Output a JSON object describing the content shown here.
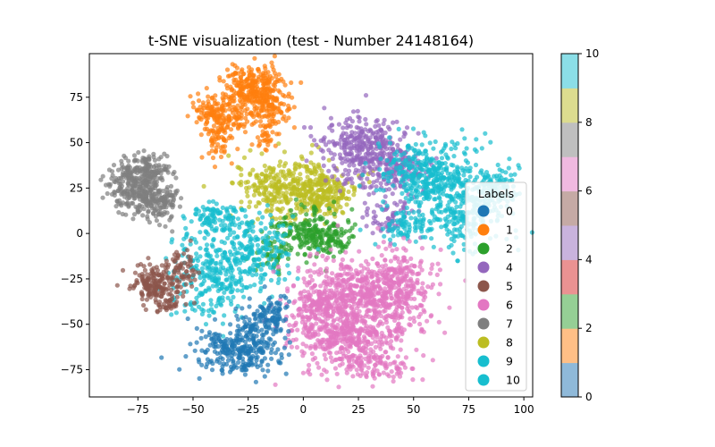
{
  "chart_data": {
    "type": "scatter",
    "title": "t-SNE visualization (test - Number 24148164)",
    "xlabel": "",
    "ylabel": "",
    "xlim": [
      -97,
      104
    ],
    "ylim": [
      -90,
      99
    ],
    "x_ticks": [
      -75,
      -50,
      -25,
      0,
      25,
      50,
      75,
      100
    ],
    "y_ticks": [
      -75,
      -50,
      -25,
      0,
      25,
      50,
      75
    ],
    "grid": false,
    "legend": {
      "title": "Labels",
      "placement": "lower-right",
      "entries": [
        {
          "label": "0",
          "color": "#1f77b4"
        },
        {
          "label": "1",
          "color": "#ff7f0e"
        },
        {
          "label": "2",
          "color": "#2ca02c"
        },
        {
          "label": "4",
          "color": "#9467bd"
        },
        {
          "label": "5",
          "color": "#8c564b"
        },
        {
          "label": "6",
          "color": "#e377c2"
        },
        {
          "label": "7",
          "color": "#7f7f7f"
        },
        {
          "label": "8",
          "color": "#bcbd22"
        },
        {
          "label": "9",
          "color": "#17becf"
        },
        {
          "label": "10",
          "color": "#17becf"
        }
      ]
    },
    "colorbar": {
      "range": [
        0,
        10
      ],
      "ticks": [
        0,
        2,
        4,
        6,
        8,
        10
      ],
      "colors": [
        "#8fb9d9",
        "#ffbf86",
        "#95cf95",
        "#ea9292",
        "#c9b3dd",
        "#c5aaa5",
        "#f0b9e0",
        "#bfbfbf",
        "#dcdc8f",
        "#8bdee7"
      ]
    },
    "series": [
      {
        "label": "1",
        "color": "#ff7f0e",
        "clusters": [
          {
            "cx": -23,
            "cy": 80,
            "sx": 7,
            "sy": 6,
            "n": 260
          },
          {
            "cx": -37,
            "cy": 65,
            "sx": 6,
            "sy": 6,
            "n": 180
          },
          {
            "cx": -15,
            "cy": 68,
            "sx": 5,
            "sy": 6,
            "n": 120
          },
          {
            "cx": -38,
            "cy": 49,
            "sx": 3,
            "sy": 5,
            "n": 40
          },
          {
            "cx": -17,
            "cy": 52,
            "sx": 2,
            "sy": 3,
            "n": 25
          }
        ]
      },
      {
        "label": "7",
        "color": "#7f7f7f",
        "clusters": [
          {
            "cx": -76,
            "cy": 27,
            "sx": 6,
            "sy": 7,
            "n": 260
          },
          {
            "cx": -66,
            "cy": 18,
            "sx": 5,
            "sy": 5,
            "n": 140
          },
          {
            "cx": -68,
            "cy": 36,
            "sx": 5,
            "sy": 4,
            "n": 80
          }
        ]
      },
      {
        "label": "8",
        "color": "#bcbd22",
        "clusters": [
          {
            "cx": -5,
            "cy": 25,
            "sx": 13,
            "sy": 8,
            "n": 430
          },
          {
            "cx": 12,
            "cy": 21,
            "sx": 5,
            "sy": 6,
            "n": 90
          }
        ]
      },
      {
        "label": "2",
        "color": "#2ca02c",
        "clusters": [
          {
            "cx": 2,
            "cy": 0,
            "sx": 9,
            "sy": 7,
            "n": 200
          },
          {
            "cx": 14,
            "cy": -2,
            "sx": 4,
            "sy": 4,
            "n": 60
          },
          {
            "cx": -12,
            "cy": -12,
            "sx": 5,
            "sy": 5,
            "n": 40
          }
        ]
      },
      {
        "label": "4",
        "color": "#9467bd",
        "clusters": [
          {
            "cx": 27,
            "cy": 47,
            "sx": 9,
            "sy": 9,
            "n": 320
          },
          {
            "cx": 42,
            "cy": 35,
            "sx": 8,
            "sy": 8,
            "n": 160
          },
          {
            "cx": 38,
            "cy": 8,
            "sx": 6,
            "sy": 5,
            "n": 60
          }
        ]
      },
      {
        "label": "9",
        "color": "#17becf",
        "clusters": [
          {
            "cx": 56,
            "cy": 33,
            "sx": 10,
            "sy": 10,
            "n": 330
          },
          {
            "cx": 73,
            "cy": 14,
            "sx": 9,
            "sy": 12,
            "n": 300
          },
          {
            "cx": 88,
            "cy": 24,
            "sx": 5,
            "sy": 6,
            "n": 110
          },
          {
            "cx": 46,
            "cy": 4,
            "sx": 6,
            "sy": 5,
            "n": 80
          },
          {
            "cx": -38,
            "cy": 8,
            "sx": 6,
            "sy": 5,
            "n": 100
          },
          {
            "cx": -40,
            "cy": -22,
            "sx": 10,
            "sy": 12,
            "n": 300
          },
          {
            "cx": -20,
            "cy": -8,
            "sx": 8,
            "sy": 9,
            "n": 150
          }
        ]
      },
      {
        "label": "5",
        "color": "#8c564b",
        "clusters": [
          {
            "cx": -68,
            "cy": -28,
            "sx": 5,
            "sy": 5,
            "n": 160
          },
          {
            "cx": -56,
            "cy": -20,
            "sx": 4,
            "sy": 6,
            "n": 70
          },
          {
            "cx": -60,
            "cy": -38,
            "sx": 4,
            "sy": 3,
            "n": 40
          }
        ]
      },
      {
        "label": "6",
        "color": "#e377c2",
        "clusters": [
          {
            "cx": 27,
            "cy": -35,
            "sx": 14,
            "sy": 12,
            "n": 650
          },
          {
            "cx": 18,
            "cy": -58,
            "sx": 12,
            "sy": 9,
            "n": 340
          },
          {
            "cx": 43,
            "cy": -28,
            "sx": 7,
            "sy": 10,
            "n": 180
          },
          {
            "cx": 5,
            "cy": -42,
            "sx": 6,
            "sy": 8,
            "n": 120
          },
          {
            "cx": 34,
            "cy": -72,
            "sx": 8,
            "sy": 4,
            "n": 100
          }
        ]
      },
      {
        "label": "0",
        "color": "#1f77b4",
        "clusters": [
          {
            "cx": -30,
            "cy": -65,
            "sx": 9,
            "sy": 7,
            "n": 260
          },
          {
            "cx": -20,
            "cy": -50,
            "sx": 6,
            "sy": 6,
            "n": 110
          },
          {
            "cx": -12,
            "cy": -42,
            "sx": 3,
            "sy": 4,
            "n": 40
          }
        ]
      }
    ]
  }
}
